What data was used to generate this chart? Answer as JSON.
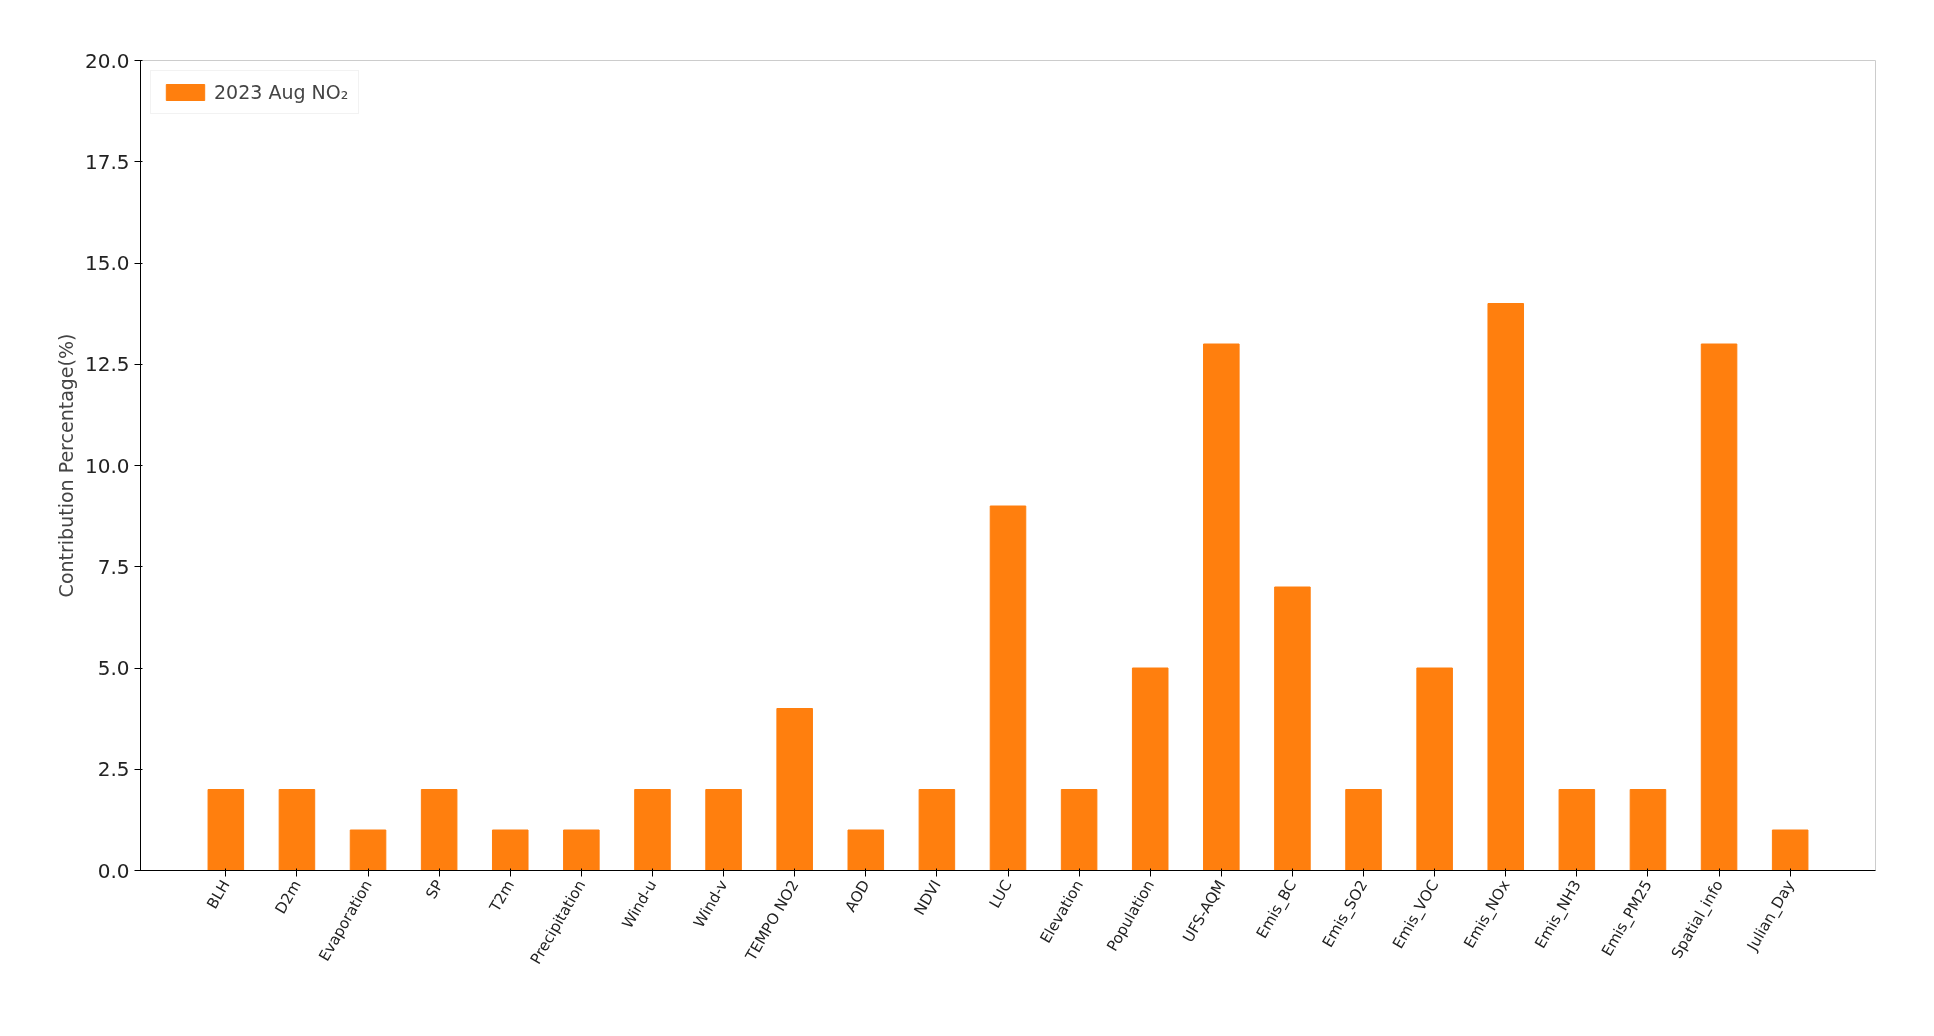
{
  "chart_data": {
    "type": "bar",
    "ylabel": "Contribution Percentage(%)",
    "categories": [
      "BLH",
      "D2m",
      "Evaporation",
      "SP",
      "T2m",
      "Precipitation",
      "Wind-u",
      "Wind-v",
      "TEMPO NO2",
      "AOD",
      "NDVI",
      "LUC",
      "Elevation",
      "Population",
      "UFS-AQM",
      "Emis_BC",
      "Emis_SO2",
      "Emis_VOC",
      "Emis_NOx",
      "Emis_NH3",
      "Emis_PM25",
      "Spatial_info",
      "Julian_Day"
    ],
    "series": [
      {
        "name": "2023 Aug NO₂",
        "color": "#ff7f0e",
        "values": [
          2,
          2,
          1,
          2,
          1,
          1,
          2,
          2,
          4,
          1,
          2,
          9,
          2,
          5,
          13,
          7,
          2,
          5,
          14,
          2,
          2,
          13,
          1
        ]
      }
    ],
    "ylim": [
      0,
      20
    ],
    "yticks": [
      {
        "value": 0,
        "label": "0.0"
      },
      {
        "value": 2.5,
        "label": "2.5"
      },
      {
        "value": 5,
        "label": "5.0"
      },
      {
        "value": 7.5,
        "label": "7.5"
      },
      {
        "value": 10,
        "label": "10.0"
      },
      {
        "value": 12.5,
        "label": "12.5"
      },
      {
        "value": 15,
        "label": "15.0"
      },
      {
        "value": 17.5,
        "label": "17.5"
      },
      {
        "value": 20,
        "label": "20.0"
      }
    ],
    "legend": "top left",
    "grid": false
  }
}
